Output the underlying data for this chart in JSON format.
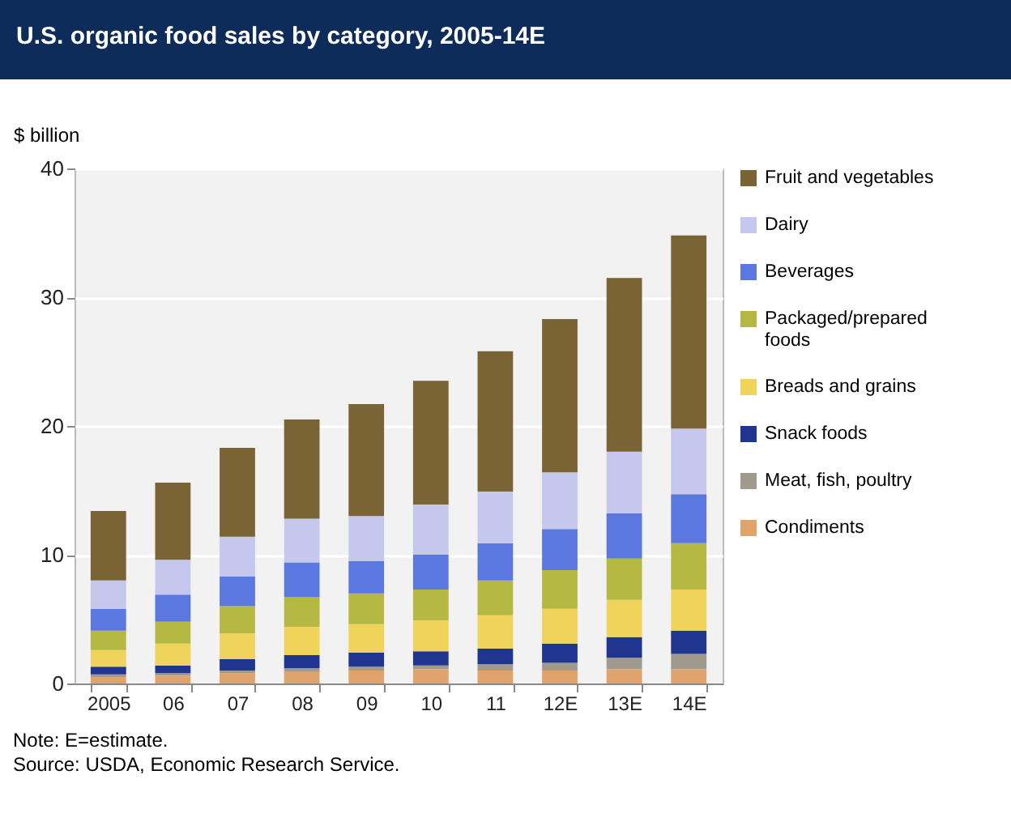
{
  "chart_data": {
    "type": "bar",
    "stacked": true,
    "title": "U.S. organic food sales by category, 2005-14E",
    "ylabel": "$ billion",
    "categories": [
      "2005",
      "06",
      "07",
      "08",
      "09",
      "10",
      "11",
      "12E",
      "13E",
      "14E"
    ],
    "series": [
      {
        "name": "Condiments",
        "color": "#dfa36b",
        "values": [
          0.5,
          0.6,
          0.8,
          0.9,
          1.0,
          1.1,
          1.0,
          1.0,
          1.1,
          1.1
        ]
      },
      {
        "name": "Meat, fish, poultry",
        "color": "#a09a8e",
        "values": [
          0.2,
          0.2,
          0.2,
          0.3,
          0.3,
          0.3,
          0.5,
          0.6,
          0.9,
          1.2
        ]
      },
      {
        "name": "Snack foods",
        "color": "#1f3590",
        "values": [
          0.6,
          0.6,
          0.9,
          1.0,
          1.1,
          1.1,
          1.2,
          1.5,
          1.6,
          1.8
        ]
      },
      {
        "name": "Breads and grains",
        "color": "#f0d35a",
        "values": [
          1.3,
          1.7,
          2.0,
          2.2,
          2.2,
          2.4,
          2.6,
          2.7,
          2.9,
          3.2
        ]
      },
      {
        "name": "Packaged/prepared foods",
        "color": "#b5b843",
        "values": [
          1.5,
          1.7,
          2.1,
          2.3,
          2.4,
          2.4,
          2.7,
          3.0,
          3.2,
          3.6
        ]
      },
      {
        "name": "Beverages",
        "color": "#5a78e0",
        "values": [
          1.7,
          2.1,
          2.3,
          2.7,
          2.5,
          2.7,
          2.9,
          3.2,
          3.5,
          3.8
        ]
      },
      {
        "name": "Dairy",
        "color": "#c5c8ec",
        "values": [
          2.2,
          2.7,
          3.1,
          3.4,
          3.5,
          3.9,
          4.0,
          4.4,
          4.8,
          5.1
        ]
      },
      {
        "name": "Fruit and vegetables",
        "color": "#7a6335",
        "values": [
          5.4,
          6.0,
          6.9,
          7.7,
          8.7,
          9.6,
          10.9,
          11.9,
          13.5,
          15.0
        ]
      }
    ],
    "ylim": [
      0,
      40
    ],
    "yticks": [
      0,
      10,
      20,
      30,
      40
    ],
    "grid": "y",
    "legend": "right",
    "annotations": [
      "Note: E=estimate.",
      "Source: USDA, Economic Research Service."
    ]
  }
}
